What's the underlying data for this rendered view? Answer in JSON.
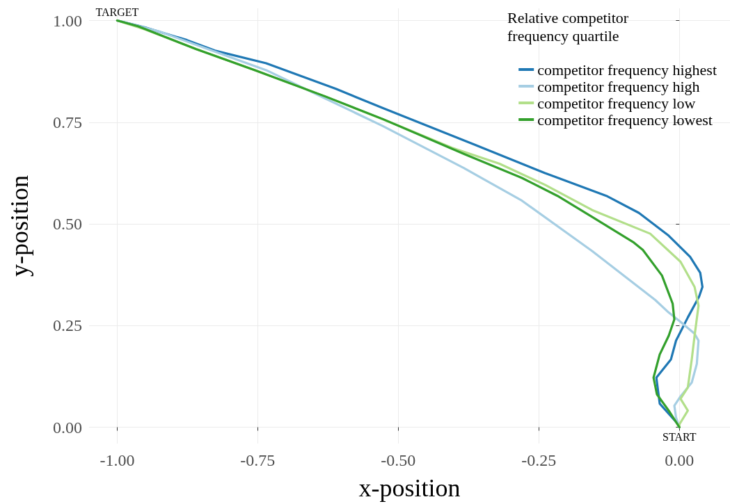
{
  "chart_data": {
    "type": "line",
    "xlabel": "x-position",
    "ylabel": "y-position",
    "legend_title": "Relative competitor frequency quartile",
    "legend": "top right",
    "grid": true,
    "xlim": [
      -1.05,
      0.09
    ],
    "ylim": [
      -0.04,
      1.03
    ],
    "xticks": [
      {
        "value": -1,
        "label": "-1.00"
      },
      {
        "value": -0.75,
        "label": "-0.75"
      },
      {
        "value": -0.5,
        "label": "-0.50"
      },
      {
        "value": -0.25,
        "label": "-0.25"
      },
      {
        "value": 0,
        "label": "0.00"
      }
    ],
    "yticks": [
      {
        "value": 0,
        "label": "0.00"
      },
      {
        "value": 0.25,
        "label": "0.25"
      },
      {
        "value": 0.5,
        "label": "0.50"
      },
      {
        "value": 0.75,
        "label": "0.75"
      },
      {
        "value": 1,
        "label": "1.00"
      }
    ],
    "annotations": [
      {
        "text": "TARGET",
        "x": -1,
        "y": 1
      },
      {
        "text": "START",
        "x": 0,
        "y": 0
      }
    ],
    "series": [
      {
        "name": "competitor frequency highest",
        "color": "#1f78b4",
        "x": [
          0,
          -0.002,
          -0.035,
          -0.041,
          -0.015,
          -0.006,
          0.015,
          0.035,
          0.041,
          0.037,
          0.019,
          -0.019,
          -0.072,
          -0.13,
          -0.239,
          -0.363,
          -0.528,
          -0.611,
          -0.735,
          -0.826,
          -0.876,
          -0.95,
          -1
        ],
        "values": [
          0,
          0.007,
          0.058,
          0.122,
          0.167,
          0.213,
          0.27,
          0.321,
          0.345,
          0.38,
          0.419,
          0.471,
          0.527,
          0.569,
          0.625,
          0.694,
          0.785,
          0.832,
          0.895,
          0.926,
          0.952,
          0.983,
          1
        ]
      },
      {
        "name": "competitor frequency high",
        "color": "#a6cee3",
        "x": [
          0,
          -0.006,
          -0.009,
          0.002,
          0.022,
          0.031,
          0.034,
          0.027,
          0.002,
          -0.019,
          -0.043,
          -0.155,
          -0.28,
          -0.383,
          -0.528,
          -0.631,
          -0.735,
          -0.839,
          -0.925,
          -1
        ],
        "values": [
          0,
          0.024,
          0.053,
          0.076,
          0.11,
          0.156,
          0.213,
          0.23,
          0.259,
          0.282,
          0.313,
          0.433,
          0.557,
          0.637,
          0.741,
          0.809,
          0.878,
          0.93,
          0.973,
          1
        ]
      },
      {
        "name": "competitor frequency low",
        "color": "#b2df8a",
        "x": [
          0,
          0,
          0.015,
          0.002,
          0.015,
          0.022,
          0.027,
          0.034,
          0.027,
          0.002,
          -0.052,
          -0.155,
          -0.239,
          -0.32,
          -0.404,
          -0.507,
          -0.631,
          -0.755,
          -0.86,
          -0.95,
          -1
        ],
        "values": [
          0,
          0.007,
          0.041,
          0.07,
          0.098,
          0.167,
          0.225,
          0.299,
          0.345,
          0.407,
          0.476,
          0.534,
          0.596,
          0.648,
          0.687,
          0.746,
          0.814,
          0.878,
          0.93,
          0.978,
          1
        ]
      },
      {
        "name": "competitor frequency lowest",
        "color": "#33a02c",
        "x": [
          0,
          -0.019,
          -0.04,
          -0.046,
          -0.035,
          -0.019,
          -0.009,
          -0.012,
          -0.031,
          -0.065,
          -0.081,
          -0.155,
          -0.217,
          -0.28,
          -0.383,
          -0.528,
          -0.631,
          -0.755,
          -0.86,
          -0.963,
          -1
        ],
        "values": [
          0,
          0.041,
          0.081,
          0.122,
          0.179,
          0.225,
          0.265,
          0.304,
          0.373,
          0.436,
          0.454,
          0.517,
          0.569,
          0.613,
          0.672,
          0.758,
          0.814,
          0.878,
          0.93,
          0.986,
          1
        ]
      }
    ]
  }
}
